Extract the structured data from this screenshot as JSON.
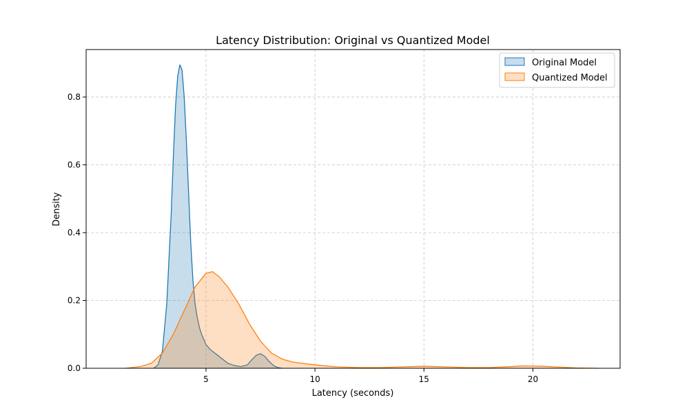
{
  "chart_data": {
    "type": "area",
    "title": "Latency Distribution: Original vs Quantized Model",
    "xlabel": "Latency (seconds)",
    "ylabel": "Density",
    "xlim": [
      -0.5,
      24.0
    ],
    "ylim": [
      0,
      0.94
    ],
    "xticks": [
      5,
      10,
      15,
      20
    ],
    "yticks": [
      0.0,
      0.2,
      0.4,
      0.6,
      0.8
    ],
    "grid": true,
    "legend_position": "top-right",
    "series": [
      {
        "name": "Original Model",
        "color": "#1f77b4",
        "fill": "#1f77b4",
        "x": [
          2.6,
          2.8,
          3.0,
          3.2,
          3.4,
          3.5,
          3.6,
          3.7,
          3.8,
          3.9,
          4.0,
          4.1,
          4.2,
          4.3,
          4.4,
          4.5,
          4.6,
          4.7,
          4.8,
          5.0,
          5.2,
          5.5,
          5.8,
          6.0,
          6.3,
          6.6,
          6.9,
          7.1,
          7.3,
          7.5,
          7.7,
          7.9,
          8.1,
          8.3,
          8.5
        ],
        "y": [
          0.0,
          0.01,
          0.05,
          0.19,
          0.45,
          0.62,
          0.77,
          0.86,
          0.895,
          0.88,
          0.8,
          0.67,
          0.52,
          0.37,
          0.26,
          0.19,
          0.15,
          0.12,
          0.1,
          0.07,
          0.055,
          0.04,
          0.025,
          0.015,
          0.008,
          0.005,
          0.01,
          0.025,
          0.038,
          0.043,
          0.035,
          0.02,
          0.008,
          0.002,
          0.0
        ]
      },
      {
        "name": "Quantized Model",
        "color": "#ff7f0e",
        "fill": "#ff7f0e",
        "x": [
          1.3,
          2.0,
          2.5,
          3.0,
          3.5,
          4.0,
          4.5,
          5.0,
          5.3,
          5.6,
          6.0,
          6.5,
          7.0,
          7.5,
          8.0,
          8.5,
          9.0,
          10.0,
          11.0,
          12.0,
          13.0,
          14.0,
          15.0,
          16.0,
          17.0,
          18.0,
          19.0,
          19.5,
          20.5,
          21.0,
          22.0,
          23.0
        ],
        "y": [
          0.0,
          0.005,
          0.015,
          0.045,
          0.1,
          0.17,
          0.24,
          0.28,
          0.285,
          0.27,
          0.24,
          0.19,
          0.13,
          0.08,
          0.045,
          0.027,
          0.018,
          0.01,
          0.004,
          0.002,
          0.002,
          0.004,
          0.006,
          0.004,
          0.002,
          0.002,
          0.005,
          0.007,
          0.006,
          0.004,
          0.001,
          0.0
        ]
      }
    ]
  }
}
